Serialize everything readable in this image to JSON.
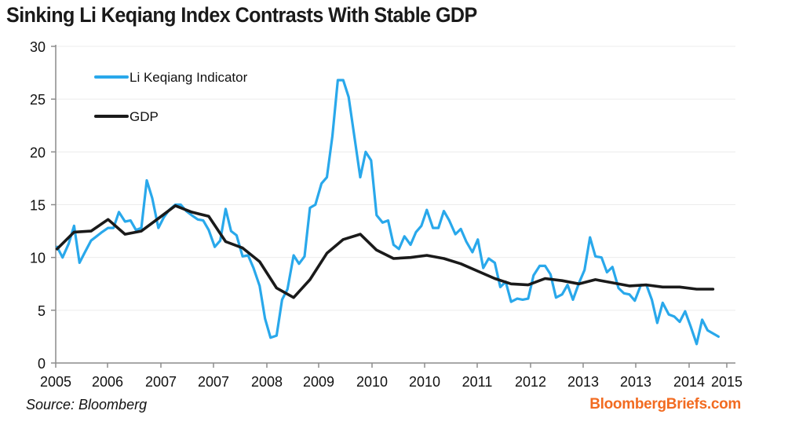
{
  "chart_data": {
    "type": "line",
    "title": "Sinking Li Keqiang Index Contrasts With Stable GDP",
    "xlabel": "",
    "ylabel": "",
    "ylim": [
      0,
      30
    ],
    "yticks": [
      0,
      5,
      10,
      15,
      20,
      25,
      30
    ],
    "xticks": [
      "2005",
      "2006",
      "2007",
      "2007",
      "2008",
      "2009",
      "2010",
      "2010",
      "2011",
      "2012",
      "2013",
      "2013",
      "2014",
      "2015"
    ],
    "xlim": [
      0,
      1
    ],
    "x_unit": "fraction of time axis (2005 start = 0, early 2015 end = 1)",
    "grid": "horizontal",
    "legend": {
      "placement": "top-left",
      "entries": [
        "Li Keqiang Indicator",
        "GDP"
      ]
    },
    "series": [
      {
        "name": "Li Keqiang Indicator",
        "color": "#29a8eb",
        "points": [
          [
            0.002,
            11.0
          ],
          [
            0.01,
            10.0
          ],
          [
            0.019,
            11.3
          ],
          [
            0.027,
            13.0
          ],
          [
            0.035,
            9.5
          ],
          [
            0.043,
            10.5
          ],
          [
            0.052,
            11.6
          ],
          [
            0.06,
            12.0
          ],
          [
            0.068,
            12.4
          ],
          [
            0.077,
            12.8
          ],
          [
            0.085,
            12.8
          ],
          [
            0.093,
            14.3
          ],
          [
            0.102,
            13.4
          ],
          [
            0.11,
            13.5
          ],
          [
            0.118,
            12.6
          ],
          [
            0.126,
            12.8
          ],
          [
            0.134,
            17.3
          ],
          [
            0.142,
            15.6
          ],
          [
            0.151,
            12.8
          ],
          [
            0.159,
            13.8
          ],
          [
            0.167,
            14.5
          ],
          [
            0.176,
            15.0
          ],
          [
            0.184,
            15.0
          ],
          [
            0.192,
            14.4
          ],
          [
            0.2,
            14.0
          ],
          [
            0.209,
            13.6
          ],
          [
            0.217,
            13.5
          ],
          [
            0.225,
            12.6
          ],
          [
            0.234,
            11.0
          ],
          [
            0.242,
            11.6
          ],
          [
            0.25,
            14.6
          ],
          [
            0.258,
            12.5
          ],
          [
            0.266,
            12.1
          ],
          [
            0.275,
            10.1
          ],
          [
            0.283,
            10.2
          ],
          [
            0.291,
            9.0
          ],
          [
            0.3,
            7.3
          ],
          [
            0.308,
            4.2
          ],
          [
            0.316,
            2.4
          ],
          [
            0.325,
            2.6
          ],
          [
            0.333,
            6.0
          ],
          [
            0.341,
            7.0
          ],
          [
            0.35,
            10.2
          ],
          [
            0.358,
            9.4
          ],
          [
            0.366,
            10.1
          ],
          [
            0.374,
            14.7
          ],
          [
            0.382,
            15.0
          ],
          [
            0.391,
            17.0
          ],
          [
            0.399,
            17.6
          ],
          [
            0.407,
            21.5
          ],
          [
            0.415,
            26.8
          ],
          [
            0.423,
            26.8
          ],
          [
            0.431,
            25.2
          ],
          [
            0.44,
            21.2
          ],
          [
            0.448,
            17.6
          ],
          [
            0.456,
            20.0
          ],
          [
            0.464,
            19.2
          ],
          [
            0.472,
            14.0
          ],
          [
            0.481,
            13.3
          ],
          [
            0.489,
            13.5
          ],
          [
            0.497,
            11.2
          ],
          [
            0.505,
            10.8
          ],
          [
            0.513,
            12.0
          ],
          [
            0.522,
            11.2
          ],
          [
            0.53,
            12.4
          ],
          [
            0.538,
            13.0
          ],
          [
            0.546,
            14.5
          ],
          [
            0.555,
            12.8
          ],
          [
            0.563,
            12.8
          ],
          [
            0.571,
            14.4
          ],
          [
            0.579,
            13.5
          ],
          [
            0.588,
            12.2
          ],
          [
            0.596,
            12.7
          ],
          [
            0.604,
            11.5
          ],
          [
            0.613,
            10.5
          ],
          [
            0.621,
            11.7
          ],
          [
            0.629,
            9.0
          ],
          [
            0.637,
            9.9
          ],
          [
            0.646,
            9.5
          ],
          [
            0.654,
            7.2
          ],
          [
            0.662,
            7.7
          ],
          [
            0.67,
            5.8
          ],
          [
            0.679,
            6.1
          ],
          [
            0.687,
            6.0
          ],
          [
            0.695,
            6.1
          ],
          [
            0.703,
            8.3
          ],
          [
            0.712,
            9.2
          ],
          [
            0.72,
            9.2
          ],
          [
            0.728,
            8.4
          ],
          [
            0.736,
            6.2
          ],
          [
            0.745,
            6.5
          ],
          [
            0.753,
            7.4
          ],
          [
            0.761,
            6.0
          ],
          [
            0.77,
            7.6
          ],
          [
            0.778,
            8.8
          ],
          [
            0.786,
            11.9
          ],
          [
            0.794,
            10.1
          ],
          [
            0.803,
            10.0
          ],
          [
            0.811,
            8.6
          ],
          [
            0.819,
            9.1
          ],
          [
            0.828,
            7.1
          ],
          [
            0.836,
            6.6
          ],
          [
            0.844,
            6.5
          ],
          [
            0.852,
            5.9
          ],
          [
            0.861,
            7.4
          ],
          [
            0.869,
            7.4
          ],
          [
            0.877,
            6.0
          ],
          [
            0.885,
            3.8
          ],
          [
            0.893,
            5.7
          ],
          [
            0.902,
            4.6
          ],
          [
            0.91,
            4.4
          ],
          [
            0.918,
            3.9
          ],
          [
            0.926,
            4.9
          ],
          [
            0.934,
            3.5
          ],
          [
            0.943,
            1.8
          ],
          [
            0.951,
            4.1
          ],
          [
            0.959,
            3.1
          ],
          [
            0.967,
            2.8
          ],
          [
            0.975,
            2.5
          ]
        ]
      },
      {
        "name": "GDP",
        "color": "#1a1a1a",
        "points": [
          [
            0.002,
            10.8
          ],
          [
            0.027,
            12.4
          ],
          [
            0.052,
            12.5
          ],
          [
            0.077,
            13.6
          ],
          [
            0.102,
            12.2
          ],
          [
            0.126,
            12.5
          ],
          [
            0.151,
            13.7
          ],
          [
            0.176,
            14.9
          ],
          [
            0.2,
            14.3
          ],
          [
            0.225,
            13.9
          ],
          [
            0.25,
            11.5
          ],
          [
            0.275,
            10.9
          ],
          [
            0.3,
            9.6
          ],
          [
            0.325,
            7.1
          ],
          [
            0.35,
            6.2
          ],
          [
            0.374,
            7.9
          ],
          [
            0.399,
            10.4
          ],
          [
            0.423,
            11.7
          ],
          [
            0.448,
            12.2
          ],
          [
            0.472,
            10.7
          ],
          [
            0.497,
            9.9
          ],
          [
            0.522,
            10.0
          ],
          [
            0.546,
            10.2
          ],
          [
            0.571,
            9.9
          ],
          [
            0.596,
            9.4
          ],
          [
            0.621,
            8.7
          ],
          [
            0.646,
            8.0
          ],
          [
            0.67,
            7.5
          ],
          [
            0.695,
            7.4
          ],
          [
            0.72,
            8.0
          ],
          [
            0.745,
            7.8
          ],
          [
            0.77,
            7.5
          ],
          [
            0.794,
            7.9
          ],
          [
            0.819,
            7.6
          ],
          [
            0.844,
            7.3
          ],
          [
            0.869,
            7.4
          ],
          [
            0.893,
            7.2
          ],
          [
            0.918,
            7.2
          ],
          [
            0.943,
            7.0
          ],
          [
            0.967,
            7.0
          ]
        ]
      }
    ]
  },
  "footer": {
    "source": "Source: Bloomberg",
    "brand": "BloombergBriefs.com",
    "brand_color": "#f26b21"
  }
}
